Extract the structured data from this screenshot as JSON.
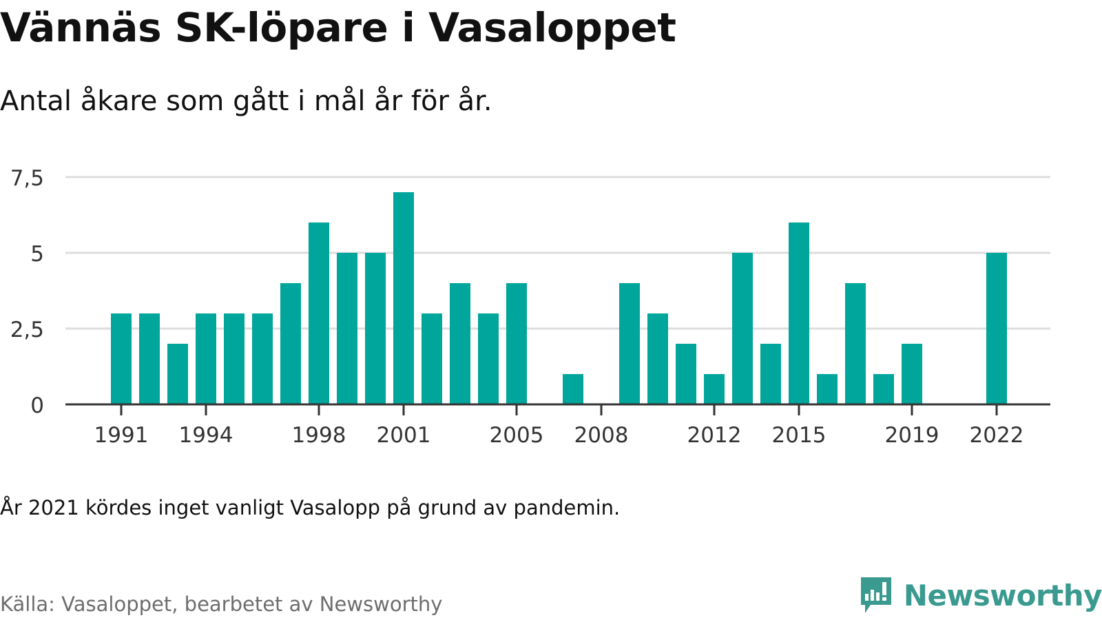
{
  "title": "Vännäs SK-löpare i Vasaloppet",
  "subtitle": "Antal åkare som gått i mål år för år.",
  "note": "År 2021 kördes inget vanligt Vasalopp på grund av pandemin.",
  "source": "Källa: Vasaloppet, bearbetet av Newsworthy",
  "brand": {
    "name": "Newsworthy",
    "icon": "newsworthy-logo-icon"
  },
  "colors": {
    "bar": "#00a59b",
    "grid": "#dddddd",
    "axis": "#333333",
    "tick_text": "#333333"
  },
  "chart_data": {
    "type": "bar",
    "x": [
      1991,
      1992,
      1993,
      1994,
      1995,
      1996,
      1997,
      1998,
      1999,
      2000,
      2001,
      2002,
      2003,
      2004,
      2005,
      2006,
      2007,
      2008,
      2009,
      2010,
      2011,
      2012,
      2013,
      2014,
      2015,
      2016,
      2017,
      2018,
      2019,
      2020,
      2021,
      2022
    ],
    "values": [
      3,
      3,
      2,
      3,
      3,
      3,
      4,
      6,
      5,
      5,
      7,
      3,
      4,
      3,
      4,
      0,
      1,
      0,
      4,
      3,
      2,
      1,
      5,
      2,
      6,
      1,
      4,
      1,
      2,
      0,
      0,
      5
    ],
    "x_tick_labels": [
      "1991",
      "1994",
      "1998",
      "2001",
      "2005",
      "2008",
      "2012",
      "2015",
      "2019",
      "2022"
    ],
    "y_ticks": [
      0,
      2.5,
      5,
      7.5
    ],
    "y_tick_labels": [
      "0",
      "2,5",
      "5",
      "7,5"
    ],
    "ylim": [
      0,
      7.5
    ],
    "xlabel": "",
    "ylabel": "",
    "grid": true,
    "legend": "none"
  }
}
